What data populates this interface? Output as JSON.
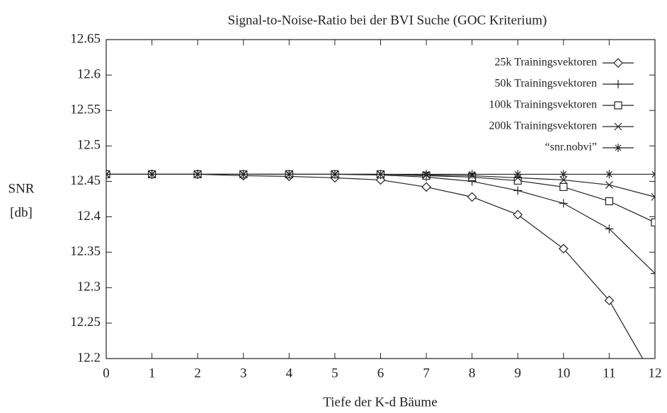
{
  "chart_data": {
    "type": "line",
    "title": "Signal-to-Noise-Ratio bei der BVI Suche (GOC Kriterium)",
    "xlabel": "Tiefe der K-d Bäume",
    "ylabel": [
      "SNR",
      "[db]"
    ],
    "x": [
      0,
      1,
      2,
      3,
      4,
      5,
      6,
      7,
      8,
      9,
      10,
      11,
      12
    ],
    "xlim": [
      0,
      12
    ],
    "xticks": [
      0,
      1,
      2,
      3,
      4,
      5,
      6,
      7,
      8,
      9,
      10,
      11,
      12
    ],
    "ylim": [
      12.2,
      12.65
    ],
    "yticks": [
      12.2,
      12.25,
      12.3,
      12.35,
      12.4,
      12.45,
      12.5,
      12.55,
      12.6,
      12.65
    ],
    "legend": "upper right",
    "series": [
      {
        "name": "25k Trainingsvektoren",
        "color": "#222",
        "marker": "diamond",
        "values": [
          12.46,
          12.46,
          12.46,
          12.458,
          12.457,
          12.455,
          12.452,
          12.442,
          12.428,
          12.403,
          12.355,
          12.282,
          12.17
        ]
      },
      {
        "name": "50k Trainingsvektoren",
        "color": "#222",
        "marker": "plus",
        "values": [
          12.46,
          12.46,
          12.46,
          12.46,
          12.46,
          12.46,
          12.459,
          12.456,
          12.45,
          12.437,
          12.419,
          12.383,
          12.32
        ]
      },
      {
        "name": "100k Trainingsvektoren",
        "color": "#222",
        "marker": "square",
        "values": [
          12.46,
          12.46,
          12.46,
          12.46,
          12.46,
          12.46,
          12.46,
          12.458,
          12.456,
          12.451,
          12.442,
          12.422,
          12.392
        ]
      },
      {
        "name": "200k Trainingsvektoren",
        "color": "#222",
        "marker": "cross",
        "values": [
          12.46,
          12.46,
          12.46,
          12.46,
          12.46,
          12.46,
          12.46,
          12.459,
          12.458,
          12.455,
          12.452,
          12.445,
          12.428
        ]
      },
      {
        "name": "“snr.nobvi”",
        "color": "#222",
        "marker": "star",
        "values": [
          12.46,
          12.46,
          12.46,
          12.46,
          12.46,
          12.46,
          12.46,
          12.46,
          12.46,
          12.46,
          12.46,
          12.46,
          12.46
        ]
      }
    ]
  }
}
